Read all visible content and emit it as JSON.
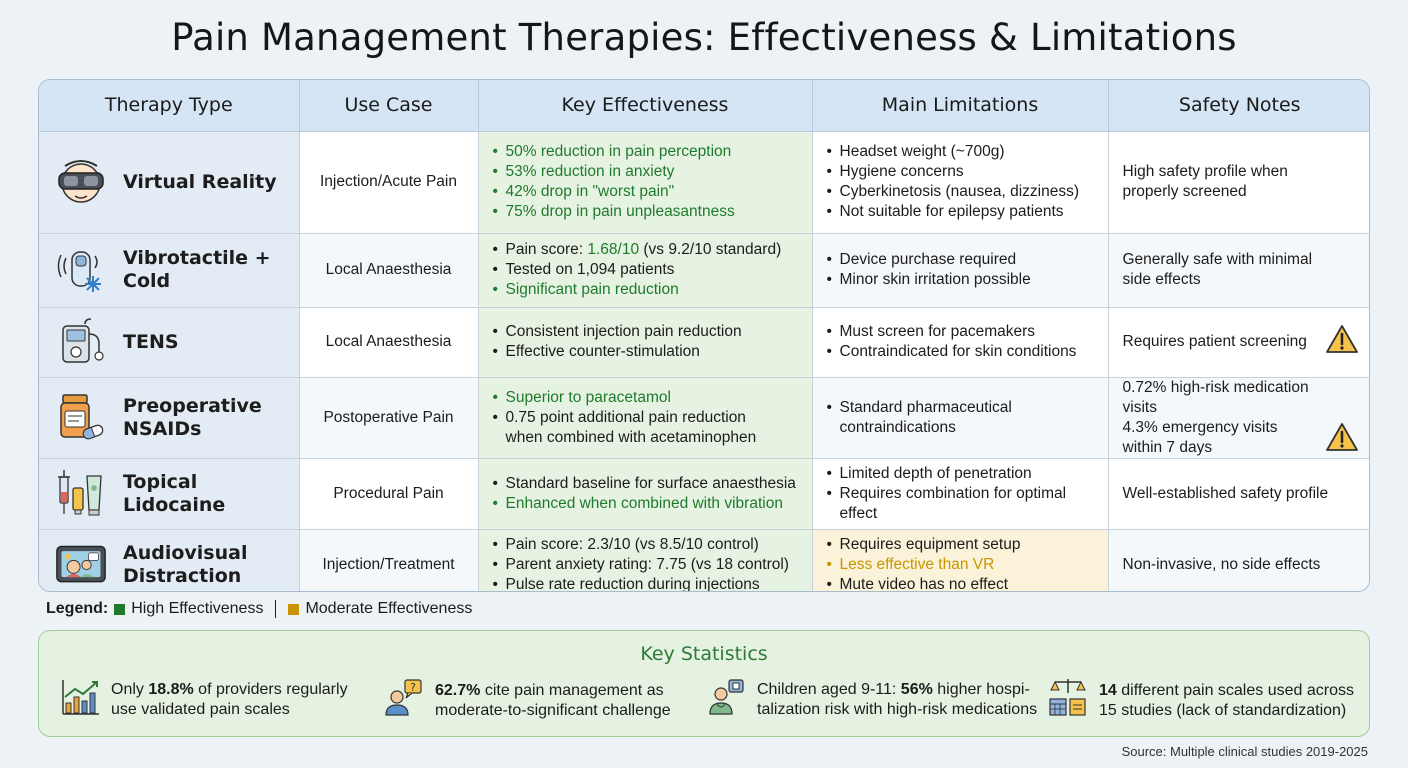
{
  "title": "Pain Management Therapies: Effectiveness & Limitations",
  "headers": [
    "Therapy Type",
    "Use Case",
    "Key Effectiveness",
    "Main Limitations",
    "Safety Notes"
  ],
  "rows": [
    {
      "icon": "vr-headset-icon",
      "name": [
        "Virtual Reality"
      ],
      "use_case": "Injection/Acute Pain",
      "effectiveness": [
        {
          "text": "50% reduction in pain perception",
          "level": "high"
        },
        {
          "text": "53% reduction in anxiety",
          "level": "high"
        },
        {
          "text": "42% drop in \"worst pain\"",
          "level": "high"
        },
        {
          "text": "75% drop in pain unpleasantness",
          "level": "high"
        }
      ],
      "limitations": [
        {
          "text": "Headset weight (~700g)",
          "level": "none"
        },
        {
          "text": "Hygiene concerns",
          "level": "none"
        },
        {
          "text": "Cyberkinetosis (nausea, dizziness)",
          "level": "none"
        },
        {
          "text": "Not suitable for epilepsy patients",
          "level": "none"
        }
      ],
      "safety": [
        "High safety profile when",
        "properly screened"
      ],
      "warning": false
    },
    {
      "icon": "vibration-cold-device-icon",
      "name": [
        "Vibrotactile + Cold"
      ],
      "use_case": "Local Anaesthesia",
      "effectiveness": [
        {
          "text": "Pain score: 1.68/10 (vs 9.2/10 standard)",
          "level": "mixed",
          "plain": "Pain score: ",
          "green": "1.68/10",
          "rest": " (vs 9.2/10 standard)"
        },
        {
          "text": "Tested on 1,094 patients",
          "level": "none"
        },
        {
          "text": "Significant pain reduction",
          "level": "high"
        }
      ],
      "limitations": [
        {
          "text": "Device purchase required",
          "level": "none"
        },
        {
          "text": "Minor skin irritation possible",
          "level": "none"
        }
      ],
      "safety": [
        "Generally safe with minimal",
        "side effects"
      ],
      "warning": false
    },
    {
      "icon": "tens-unit-icon",
      "name": [
        "TENS"
      ],
      "use_case": "Local Anaesthesia",
      "effectiveness": [
        {
          "text": "Consistent injection pain reduction",
          "level": "none"
        },
        {
          "text": "Effective counter-stimulation",
          "level": "none"
        }
      ],
      "limitations": [
        {
          "text": "Must screen for pacemakers",
          "level": "none"
        },
        {
          "text": "Contraindicated for skin conditions",
          "level": "none"
        }
      ],
      "safety": [
        "Requires patient screening"
      ],
      "warning": true
    },
    {
      "icon": "pill-bottle-icon",
      "name": [
        "Preoperative",
        "NSAIDs"
      ],
      "use_case": "Postoperative Pain",
      "effectiveness": [
        {
          "text": "Superior to paracetamol",
          "level": "high"
        },
        {
          "text": "0.75 point additional pain reduction when combined with acetaminophen",
          "level": "none",
          "lines": [
            "0.75 point additional pain reduction",
            "when combined with acetaminophen"
          ]
        }
      ],
      "limitations": [
        {
          "text": "Standard pharmaceutical contraindications",
          "level": "none",
          "lines": [
            "Standard pharmaceutical",
            "contraindications"
          ]
        }
      ],
      "safety": [
        "0.72% high-risk medication visits",
        "4.3% emergency visits",
        "within 7 days"
      ],
      "warning": true
    },
    {
      "icon": "syringe-cream-tube-icon",
      "name": [
        "Topical Lidocaine"
      ],
      "use_case": "Procedural Pain",
      "effectiveness": [
        {
          "text": "Standard baseline for surface anaesthesia",
          "level": "none"
        },
        {
          "text": "Enhanced when combined with vibration",
          "level": "high"
        }
      ],
      "limitations": [
        {
          "text": "Limited depth of penetration",
          "level": "none"
        },
        {
          "text": "Requires combination for optimal effect",
          "level": "none",
          "lines": [
            "Requires combination for optimal",
            "effect"
          ]
        }
      ],
      "safety": [
        "Well-established safety profile"
      ],
      "warning": false
    },
    {
      "icon": "tablet-video-icon",
      "name": [
        "Audiovisual",
        "Distraction"
      ],
      "use_case": "Injection/Treatment",
      "effectiveness": [
        {
          "text": "Pain score: 2.3/10 (vs 8.5/10 control)",
          "level": "none"
        },
        {
          "text": "Parent anxiety rating: 7.75 (vs 18 control)",
          "level": "none"
        },
        {
          "text": "Pulse rate reduction during injections",
          "level": "none"
        }
      ],
      "limitations": [
        {
          "text": "Requires equipment setup",
          "level": "none"
        },
        {
          "text": "Less effective than VR",
          "level": "moderate"
        },
        {
          "text": "Mute video has no effect",
          "level": "none"
        }
      ],
      "limitations_highlight": true,
      "safety": [
        "Non-invasive, no side effects"
      ],
      "warning": false
    }
  ],
  "legend": {
    "title": "Legend:",
    "items": [
      {
        "label": "High Effectiveness",
        "color": "#1f7a2c"
      },
      {
        "label": "Moderate Effectiveness",
        "color": "#c89400"
      }
    ]
  },
  "stats": {
    "title": "Key Statistics",
    "items": [
      {
        "icon": "bar-chart-icon",
        "pre": "Only ",
        "bold": "18.8%",
        "post": " of providers regularly",
        "line2": "use validated pain scales"
      },
      {
        "icon": "person-question-icon",
        "pre": "",
        "bold": "62.7%",
        "post": " cite pain management as",
        "line2": "moderate-to-significant challenge"
      },
      {
        "icon": "doctor-icon",
        "pre": "Children aged 9-11: ",
        "bold": "56%",
        "post": " higher hospi-",
        "line2": "talization risk with high-risk medications"
      },
      {
        "icon": "scales-calendar-icon",
        "pre": "",
        "bold": "14",
        "post": " different pain scales used across",
        "line2": "15 studies (lack of standardization)"
      }
    ]
  },
  "source": "Source: Multiple clinical studies 2019-2025",
  "colors": {
    "high": "#1f7a2c",
    "moderate": "#c89400",
    "header_bg": "#d5e5f5",
    "effect_bg": "#e6f2e2"
  }
}
